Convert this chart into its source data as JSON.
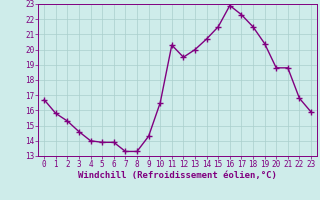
{
  "x": [
    0,
    1,
    2,
    3,
    4,
    5,
    6,
    7,
    8,
    9,
    10,
    11,
    12,
    13,
    14,
    15,
    16,
    17,
    18,
    19,
    20,
    21,
    22,
    23
  ],
  "y": [
    16.7,
    15.8,
    15.3,
    14.6,
    14.0,
    13.9,
    13.9,
    13.3,
    13.3,
    14.3,
    16.5,
    20.3,
    19.5,
    20.0,
    20.7,
    21.5,
    22.9,
    22.3,
    21.5,
    20.4,
    18.8,
    18.8,
    16.8,
    15.9
  ],
  "ylim": [
    13,
    23
  ],
  "xlim": [
    -0.5,
    23.5
  ],
  "yticks": [
    13,
    14,
    15,
    16,
    17,
    18,
    19,
    20,
    21,
    22,
    23
  ],
  "xticks": [
    0,
    1,
    2,
    3,
    4,
    5,
    6,
    7,
    8,
    9,
    10,
    11,
    12,
    13,
    14,
    15,
    16,
    17,
    18,
    19,
    20,
    21,
    22,
    23
  ],
  "line_color": "#800080",
  "marker": "+",
  "marker_size": 4,
  "line_width": 1.0,
  "bg_color": "#ceecea",
  "grid_color": "#aacfcc",
  "xlabel": "Windchill (Refroidissement éolien,°C)",
  "xlabel_fontsize": 6.5,
  "tick_fontsize": 5.5,
  "tick_color": "#800080",
  "label_color": "#800080",
  "spine_color": "#800080"
}
